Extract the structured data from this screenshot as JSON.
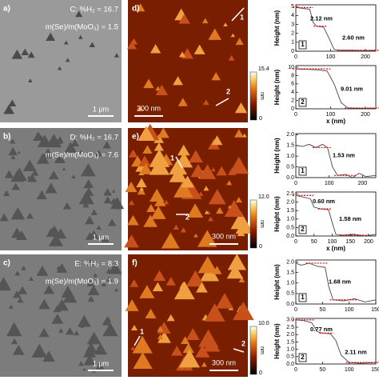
{
  "rows": [
    {
      "sem": {
        "label": "a)",
        "sample": "C: %H₂ = 16.7",
        "ratio": "m(Se)/m(MoO₃) = 1.5",
        "scale_bar": "1 μm"
      },
      "afm": {
        "label": "d)",
        "markers": [
          "1",
          "2"
        ],
        "scale_bar": "300 nm",
        "colorbar": {
          "max": 15.4,
          "min": 0,
          "unit": "nm"
        }
      },
      "profiles": [
        {
          "ylabel": "Height (nm)",
          "box": "1",
          "annotations": [
            "2.12 nm",
            "2.60 nm"
          ],
          "x": [
            0,
            20,
            40,
            50,
            60,
            80,
            95,
            110,
            130,
            160,
            200,
            230
          ],
          "values": [
            4.9,
            4.8,
            4.7,
            3.2,
            2.8,
            2.7,
            1.5,
            0.2,
            0.1,
            0.1,
            0.05,
            0.1
          ],
          "xlim": [
            0,
            230
          ],
          "ylim": [
            0,
            5.2
          ],
          "xticks": [
            0,
            100,
            200
          ],
          "yticks": [
            0,
            1,
            2,
            3,
            4,
            5
          ]
        },
        {
          "ylabel": "Height (nm)",
          "xlabel": "x (nm)",
          "box": "2",
          "annotations": [
            "9.01 nm"
          ],
          "x": [
            0,
            30,
            60,
            90,
            110,
            130,
            150,
            180,
            230
          ],
          "values": [
            9.6,
            9.5,
            9.4,
            9.1,
            6,
            1.5,
            0.2,
            0.1,
            0.1
          ],
          "xlim": [
            0,
            230
          ],
          "ylim": [
            0,
            10.4
          ],
          "xticks": [
            0,
            100,
            200
          ],
          "yticks": [
            0,
            2,
            4,
            6,
            8,
            10
          ]
        }
      ]
    },
    {
      "sem": {
        "label": "b)",
        "sample": "D: %H₂ = 16.7",
        "ratio": "m(Se)/m(MoO₃) = 7.6",
        "scale_bar": "1 μm"
      },
      "afm": {
        "label": "e)",
        "markers": [
          "1",
          "2"
        ],
        "scale_bar": "300 nm",
        "colorbar": {
          "max": {
            "value": 12,
            "label": "12.0"
          },
          "min": 0,
          "unit": "nm"
        }
      },
      "profiles": [
        {
          "ylabel": "Height (nm)",
          "box": "1",
          "annotations": [
            "1.53 nm"
          ],
          "x": [
            0,
            20,
            40,
            60,
            80,
            95,
            110,
            125,
            150,
            170,
            190,
            210,
            240
          ],
          "values": [
            1.5,
            1.45,
            1.55,
            1.4,
            1.55,
            1.4,
            0.5,
            0.1,
            0.15,
            0,
            0.2,
            0.05,
            0.1
          ],
          "xlim": [
            0,
            240
          ],
          "ylim": [
            0,
            2.05
          ],
          "xticks": [
            0,
            100,
            200
          ],
          "yticks": [
            {
              "value": 0,
              "label": "0.0"
            },
            0.5,
            {
              "value": 1,
              "label": "1.0"
            },
            1.5,
            {
              "value": 2,
              "label": "2.0"
            }
          ]
        },
        {
          "ylabel": "Height (nm)",
          "xlabel": "x (nm)",
          "box": "2",
          "annotations": [
            "0.60 nm",
            "1.58 nm"
          ],
          "x": [
            0,
            20,
            40,
            50,
            70,
            90,
            100,
            110,
            130,
            160,
            190,
            220
          ],
          "values": [
            2.4,
            2.3,
            2.2,
            1.7,
            1.6,
            1.55,
            0.8,
            0.1,
            0.05,
            0.1,
            0,
            0.1
          ],
          "xlim": [
            0,
            220
          ],
          "ylim": [
            0,
            2.6
          ],
          "xticks": [
            0,
            50,
            100,
            150,
            200
          ],
          "yticks": [
            {
              "value": 0,
              "label": "0.0"
            },
            0.5,
            {
              "value": 1,
              "label": "1.0"
            },
            1.5,
            {
              "value": 2,
              "label": "2.0"
            },
            2.5
          ]
        }
      ]
    },
    {
      "sem": {
        "label": "c)",
        "sample": "E: %H₂ = 8.3",
        "ratio": "m(Se)/m(MoO₃) = 1.9",
        "scale_bar": "1 μm"
      },
      "afm": {
        "label": "f)",
        "markers": [
          "1",
          "2"
        ],
        "scale_bar": "300 nm",
        "colorbar": {
          "max": {
            "value": 10,
            "label": "10.0"
          },
          "min": 0,
          "unit": "nm"
        }
      },
      "profiles": [
        {
          "ylabel": "Height (nm)",
          "box": "1",
          "annotations": [
            "1.68 nm"
          ],
          "x": [
            0,
            10,
            25,
            40,
            55,
            62,
            70,
            90,
            110,
            130,
            150
          ],
          "values": [
            1.95,
            1.85,
            1.95,
            1.8,
            1.75,
            0.8,
            0.2,
            0.15,
            0.25,
            0.1,
            0.2
          ],
          "xlim": [
            0,
            150
          ],
          "ylim": [
            0,
            2.1
          ],
          "xticks": [
            0,
            50,
            100,
            150
          ],
          "yticks": [
            {
              "value": 0,
              "label": "0.0"
            },
            0.5,
            {
              "value": 1,
              "label": "1.0"
            },
            1.5,
            {
              "value": 2,
              "label": "2.0"
            }
          ]
        },
        {
          "ylabel": "Height (nm)",
          "box": "2",
          "annotations": [
            "0.77 nm",
            "2.11 nm"
          ],
          "x": [
            0,
            15,
            30,
            40,
            50,
            65,
            75,
            85,
            100,
            120,
            150
          ],
          "values": [
            3.0,
            2.95,
            2.8,
            2.2,
            2.1,
            2.05,
            1.6,
            0.6,
            0.1,
            0.05,
            0.1
          ],
          "xlim": [
            0,
            150
          ],
          "ylim": [
            0,
            3.1
          ],
          "xticks": [
            0,
            50,
            100,
            150
          ],
          "yticks": [
            {
              "value": 0,
              "label": "0.0"
            },
            0.5,
            {
              "value": 1,
              "label": "1.0"
            },
            1.5,
            {
              "value": 2,
              "label": "2.0"
            },
            2.5,
            {
              "value": 3,
              "label": "3.0"
            }
          ]
        }
      ]
    }
  ]
}
